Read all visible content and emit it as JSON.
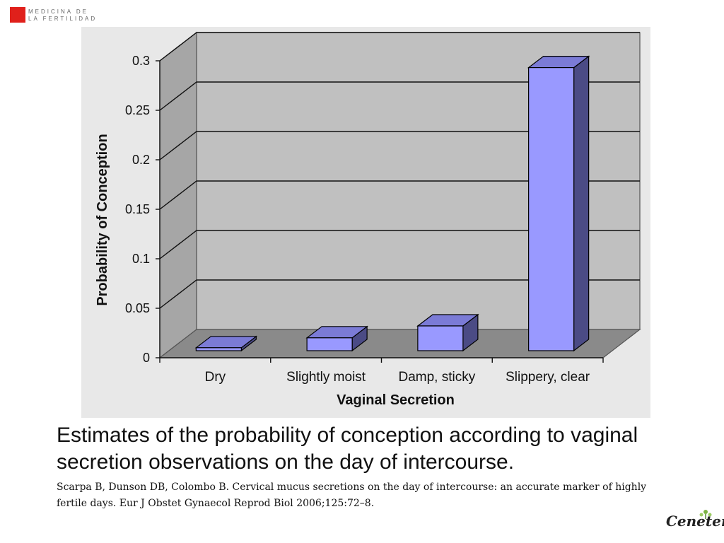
{
  "logo": {
    "line1": "MEDICINA DE",
    "line2": "LA FERTILIDAD"
  },
  "chart_data": {
    "type": "bar",
    "style": "3d-column",
    "categories": [
      "Dry",
      "Slightly moist",
      "Damp, sticky",
      "Slippery, clear"
    ],
    "values": [
      0.003,
      0.013,
      0.025,
      0.286
    ],
    "ylim": [
      0,
      0.3
    ],
    "yticks": [
      0,
      0.05,
      0.1,
      0.15,
      0.2,
      0.25,
      0.3
    ],
    "ytick_labels": [
      "0",
      "0.05",
      "0.1",
      "0.15",
      "0.2",
      "0.25",
      "0.3"
    ],
    "xlabel": "Vaginal Secretion",
    "ylabel": "Probability of Conception",
    "grid": true,
    "colors": {
      "bar_front": "#9999ff",
      "bar_top": "#7b7bd6",
      "bar_side": "#4b4b85",
      "back_wall": "#c0c0c0",
      "side_wall": "#a6a6a6",
      "floor": "#8a8a8a",
      "panel": "#e8e8e8"
    }
  },
  "caption": "Estimates of the probability of conception according to vaginal secretion observations on the day of intercourse.",
  "citation": "Scarpa B, Dunson DB, Colombo B. Cervical mucus secretions on the day of intercourse: an accurate marker of highly fertile days. Eur J Obstet Gynaecol Reprod Biol 2006;125:72–8.",
  "brand": "Ceneter"
}
